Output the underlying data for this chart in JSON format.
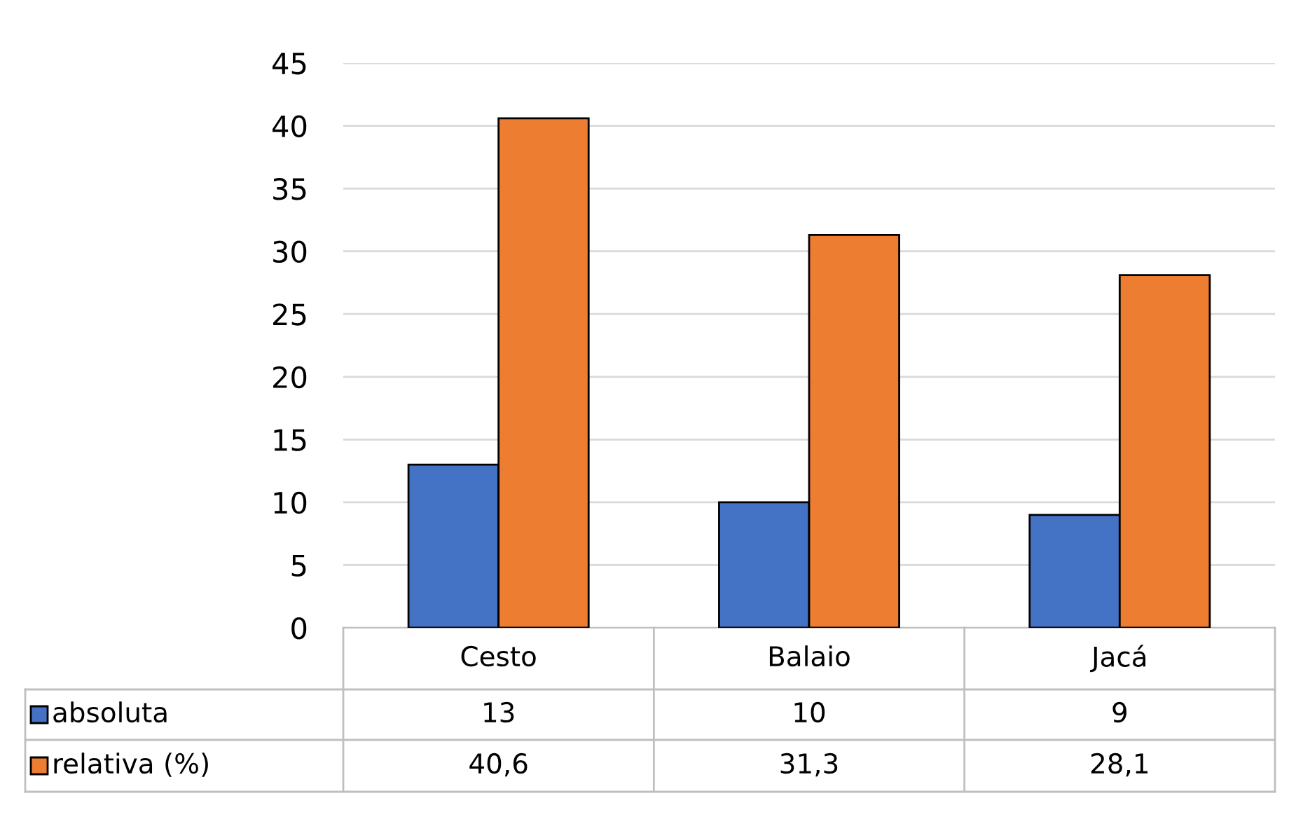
{
  "chart_data": {
    "type": "bar",
    "categories": [
      "Cesto",
      "Balaio",
      "Jacá"
    ],
    "series": [
      {
        "name": "absoluta",
        "color": "#4472c4",
        "values": [
          13,
          10,
          9
        ],
        "value_labels": [
          "13",
          "10",
          "9"
        ]
      },
      {
        "name": "relativa (%)",
        "color": "#ed7d31",
        "values": [
          40.6,
          31.3,
          28.1
        ],
        "value_labels": [
          "40,6",
          "31,3",
          "28,1"
        ]
      }
    ],
    "ylim": [
      0,
      45
    ],
    "yticks": [
      0,
      5,
      10,
      15,
      20,
      25,
      30,
      35,
      40,
      45
    ],
    "grid": "y",
    "legend": "bottom"
  }
}
